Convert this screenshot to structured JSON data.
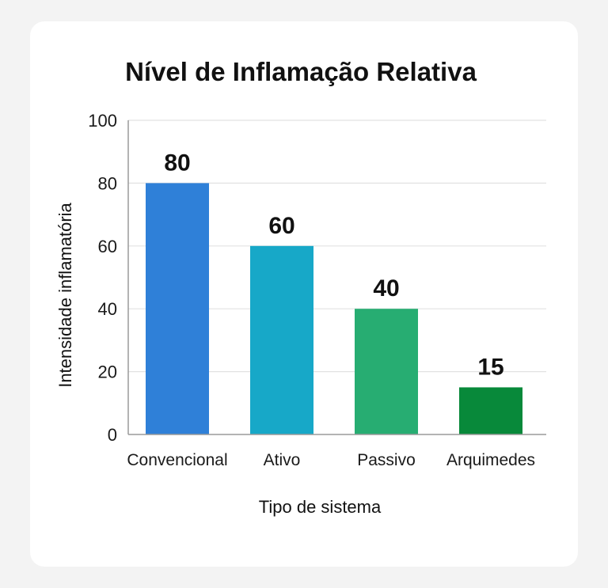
{
  "chart_data": {
    "type": "bar",
    "title": "Nível de Inflamação Relativa",
    "xlabel": "Tipo de sistema",
    "ylabel": "Intensidade inflamatória",
    "categories": [
      "Convencional",
      "Ativo",
      "Passivo",
      "Arquimedes"
    ],
    "values": [
      80,
      60,
      40,
      15
    ],
    "data_labels": [
      "80",
      "60",
      "40",
      "15"
    ],
    "yticks": [
      "0",
      "20",
      "40",
      "60",
      "80",
      "100"
    ],
    "ylim": [
      0,
      100
    ],
    "grid": true,
    "legend": "none",
    "colors": [
      "#2f80d8",
      "#17a8c8",
      "#27ad72",
      "#08893a"
    ]
  }
}
